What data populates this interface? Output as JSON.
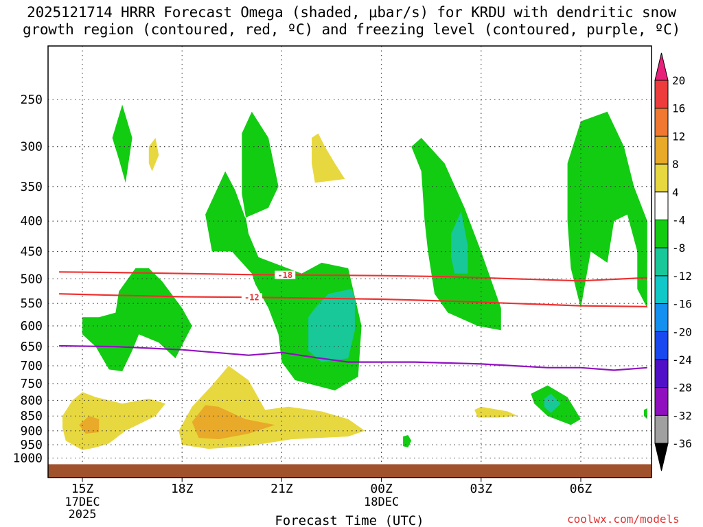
{
  "title_line1": "2025121714 HRRR Forecast Omega (shaded, μbar/s) for KRDU with dendritic snow",
  "title_line2": "growth region (contoured, red, ºC) and freezing level (contoured, purple, ºC)",
  "credit": "coolwx.com/models",
  "chart_data": {
    "type": "time-height cross section",
    "xlabel": "Forecast Time (UTC)",
    "x_ticks": [
      {
        "label": "15Z",
        "sub": [
          "17DEC",
          "2025"
        ],
        "hour": 0
      },
      {
        "label": "18Z",
        "sub": [],
        "hour": 3
      },
      {
        "label": "21Z",
        "sub": [],
        "hour": 6
      },
      {
        "label": "00Z",
        "sub": [
          "18DEC"
        ],
        "hour": 9
      },
      {
        "label": "03Z",
        "sub": [],
        "hour": 12
      },
      {
        "label": "06Z",
        "sub": [],
        "hour": 15
      }
    ],
    "x_range_hours": [
      -0.7,
      17.0
    ],
    "y_scale": "log-pressure",
    "y_range_hPa": [
      1025,
      200
    ],
    "y_ticks": [
      250,
      300,
      350,
      400,
      450,
      500,
      550,
      600,
      650,
      700,
      750,
      800,
      850,
      900,
      950,
      1000
    ],
    "grid": true,
    "ground_top_hPa": 1000,
    "colorbar": {
      "labels": [
        "20",
        "16",
        "12",
        "8",
        "4",
        "-4",
        "-8",
        "-12",
        "-16",
        "-20",
        "-24",
        "-28",
        "-32",
        "-36"
      ],
      "bins": [
        {
          "color": "#e8207a",
          "type": "triangle-top"
        },
        {
          "color": "#ee3c3c"
        },
        {
          "color": "#f07830"
        },
        {
          "color": "#e8aa28"
        },
        {
          "color": "#e8d840"
        },
        {
          "color": "#ffffff"
        },
        {
          "color": "#12cc12"
        },
        {
          "color": "#18c898"
        },
        {
          "color": "#10c8c8"
        },
        {
          "color": "#1490f0"
        },
        {
          "color": "#1848f0"
        },
        {
          "color": "#5010c8"
        },
        {
          "color": "#9010c0"
        },
        {
          "color": "#a0a0a0"
        },
        {
          "color": "#000000",
          "type": "triangle-bottom"
        }
      ]
    },
    "contour_lines": [
      {
        "label": "-18",
        "color": "#ee3030",
        "label_at_hour": 6.1,
        "points": [
          [
            -0.7,
            487
          ],
          [
            1,
            488
          ],
          [
            3,
            490
          ],
          [
            5,
            492
          ],
          [
            7,
            493
          ],
          [
            9,
            494
          ],
          [
            11,
            496
          ],
          [
            13,
            500
          ],
          [
            15,
            504
          ],
          [
            17,
            498
          ]
        ]
      },
      {
        "label": "-12",
        "color": "#ee3030",
        "label_at_hour": 5.1,
        "points": [
          [
            -0.7,
            530
          ],
          [
            1,
            533
          ],
          [
            3,
            536
          ],
          [
            5,
            537
          ],
          [
            7,
            539
          ],
          [
            9,
            541
          ],
          [
            11,
            545
          ],
          [
            13,
            550
          ],
          [
            15,
            555
          ],
          [
            17,
            557
          ]
        ]
      },
      {
        "label": "",
        "color": "#9010c0",
        "points": [
          [
            -0.7,
            648
          ],
          [
            1,
            650
          ],
          [
            3,
            658
          ],
          [
            5,
            672
          ],
          [
            6,
            665
          ],
          [
            7,
            678
          ],
          [
            8,
            690
          ],
          [
            10,
            690
          ],
          [
            12,
            695
          ],
          [
            14,
            705
          ],
          [
            15,
            705
          ],
          [
            16,
            712
          ],
          [
            17,
            705
          ]
        ]
      }
    ],
    "regions": [
      {
        "level": "-4",
        "points": [
          [
            0.9,
            290
          ],
          [
            1.2,
            255
          ],
          [
            1.5,
            290
          ],
          [
            1.3,
            345
          ],
          [
            1.1,
            315
          ]
        ]
      },
      {
        "level": "-4",
        "points": [
          [
            6.0,
            690
          ],
          [
            6.4,
            740
          ],
          [
            7.6,
            770
          ],
          [
            8.3,
            730
          ],
          [
            8.4,
            600
          ],
          [
            8.0,
            480
          ],
          [
            7.2,
            470
          ],
          [
            6.6,
            490
          ],
          [
            5.3,
            460
          ],
          [
            5.0,
            420
          ],
          [
            4.8,
            360
          ],
          [
            4.8,
            285
          ],
          [
            5.1,
            262
          ],
          [
            5.6,
            290
          ],
          [
            5.9,
            350
          ],
          [
            5.6,
            380
          ],
          [
            4.9,
            395
          ],
          [
            4.6,
            355
          ],
          [
            4.3,
            330
          ],
          [
            3.7,
            390
          ],
          [
            3.9,
            450
          ],
          [
            4.5,
            450
          ],
          [
            5.1,
            490
          ],
          [
            5.2,
            510
          ],
          [
            5.6,
            560
          ],
          [
            5.9,
            620
          ]
        ]
      },
      {
        "level": "-4",
        "points": [
          [
            0.0,
            580
          ],
          [
            0.0,
            620
          ],
          [
            0.4,
            650
          ],
          [
            0.8,
            710
          ],
          [
            1.2,
            715
          ],
          [
            1.5,
            660
          ],
          [
            1.7,
            620
          ],
          [
            2.3,
            640
          ],
          [
            2.8,
            680
          ],
          [
            3.3,
            600
          ],
          [
            3.0,
            560
          ],
          [
            2.4,
            505
          ],
          [
            2.0,
            480
          ],
          [
            1.6,
            480
          ],
          [
            1.1,
            525
          ],
          [
            1.0,
            570
          ],
          [
            0.5,
            580
          ]
        ]
      },
      {
        "level": "-4",
        "points": [
          [
            9.9,
            300
          ],
          [
            10.2,
            290
          ],
          [
            10.9,
            320
          ],
          [
            11.5,
            380
          ],
          [
            12.0,
            450
          ],
          [
            12.6,
            560
          ],
          [
            12.6,
            610
          ],
          [
            11.9,
            600
          ],
          [
            11.0,
            570
          ],
          [
            10.6,
            530
          ],
          [
            10.4,
            450
          ],
          [
            10.3,
            400
          ],
          [
            10.2,
            330
          ]
        ]
      },
      {
        "level": "-4",
        "points": [
          [
            14.6,
            320
          ],
          [
            15.0,
            272
          ],
          [
            15.8,
            262
          ],
          [
            16.3,
            300
          ],
          [
            16.6,
            350
          ],
          [
            17.0,
            400
          ],
          [
            17.0,
            470
          ],
          [
            16.7,
            450
          ],
          [
            16.4,
            390
          ],
          [
            16.0,
            400
          ],
          [
            15.8,
            470
          ],
          [
            15.3,
            450
          ],
          [
            15.0,
            560
          ],
          [
            14.7,
            480
          ],
          [
            14.6,
            400
          ]
        ]
      },
      {
        "level": "-4",
        "points": [
          [
            16.7,
            450
          ],
          [
            17.0,
            450
          ],
          [
            17.0,
            560
          ],
          [
            16.7,
            520
          ]
        ]
      },
      {
        "level": "-4",
        "points": [
          [
            13.5,
            780
          ],
          [
            14.0,
            755
          ],
          [
            14.6,
            790
          ],
          [
            15.0,
            860
          ],
          [
            14.7,
            880
          ],
          [
            14.0,
            850
          ],
          [
            13.6,
            810
          ]
        ]
      },
      {
        "level": "-4",
        "points": [
          [
            9.65,
            920
          ],
          [
            9.8,
            915
          ],
          [
            9.9,
            935
          ],
          [
            9.8,
            960
          ],
          [
            9.65,
            955
          ]
        ]
      },
      {
        "level": "-4",
        "points": [
          [
            16.9,
            830
          ],
          [
            17.0,
            825
          ],
          [
            17.0,
            860
          ],
          [
            16.9,
            850
          ]
        ]
      },
      {
        "level": "-8",
        "points": [
          [
            7.4,
            530
          ],
          [
            8.1,
            520
          ],
          [
            8.2,
            540
          ],
          [
            8.2,
            610
          ],
          [
            8.0,
            680
          ],
          [
            7.2,
            690
          ],
          [
            6.8,
            660
          ],
          [
            6.8,
            580
          ],
          [
            7.0,
            560
          ]
        ]
      },
      {
        "level": "-8",
        "points": [
          [
            11.1,
            420
          ],
          [
            11.4,
            385
          ],
          [
            11.6,
            440
          ],
          [
            11.6,
            490
          ],
          [
            11.2,
            490
          ],
          [
            11.1,
            460
          ]
        ]
      },
      {
        "level": "-8",
        "points": [
          [
            13.9,
            795
          ],
          [
            14.1,
            780
          ],
          [
            14.4,
            810
          ],
          [
            14.1,
            840
          ],
          [
            13.9,
            820
          ]
        ]
      },
      {
        "level": "4",
        "points": [
          [
            2.0,
            300
          ],
          [
            2.2,
            290
          ],
          [
            2.3,
            310
          ],
          [
            2.1,
            330
          ],
          [
            2.0,
            320
          ]
        ]
      },
      {
        "level": "4",
        "points": [
          [
            6.9,
            290
          ],
          [
            7.1,
            285
          ],
          [
            7.3,
            300
          ],
          [
            7.6,
            320
          ],
          [
            7.9,
            340
          ],
          [
            7.0,
            345
          ],
          [
            6.9,
            320
          ]
        ]
      },
      {
        "level": "4",
        "points": [
          [
            -0.6,
            850
          ],
          [
            -0.3,
            800
          ],
          [
            0.0,
            775
          ],
          [
            0.4,
            790
          ],
          [
            1.2,
            810
          ],
          [
            2.0,
            795
          ],
          [
            2.5,
            810
          ],
          [
            2.2,
            850
          ],
          [
            1.3,
            900
          ],
          [
            0.8,
            945
          ],
          [
            0.4,
            960
          ],
          [
            0.0,
            970
          ],
          [
            -0.5,
            935
          ],
          [
            -0.6,
            890
          ]
        ]
      },
      {
        "level": "4",
        "points": [
          [
            2.9,
            900
          ],
          [
            3.3,
            820
          ],
          [
            3.9,
            755
          ],
          [
            4.4,
            700
          ],
          [
            5.0,
            740
          ],
          [
            5.5,
            830
          ],
          [
            6.2,
            820
          ],
          [
            7.2,
            835
          ],
          [
            8.0,
            860
          ],
          [
            8.5,
            900
          ],
          [
            8.0,
            920
          ],
          [
            6.3,
            930
          ],
          [
            5.0,
            955
          ],
          [
            3.8,
            965
          ],
          [
            3.0,
            950
          ]
        ]
      },
      {
        "level": "4",
        "points": [
          [
            11.8,
            830
          ],
          [
            12.0,
            820
          ],
          [
            12.8,
            835
          ],
          [
            13.1,
            850
          ],
          [
            12.5,
            855
          ],
          [
            11.9,
            855
          ]
        ]
      },
      {
        "level": "8",
        "points": [
          [
            3.3,
            870
          ],
          [
            3.7,
            815
          ],
          [
            4.1,
            820
          ],
          [
            4.9,
            860
          ],
          [
            5.8,
            880
          ],
          [
            5.0,
            910
          ],
          [
            4.1,
            930
          ],
          [
            3.5,
            925
          ]
        ]
      },
      {
        "level": "8",
        "points": [
          [
            -0.1,
            880
          ],
          [
            0.2,
            850
          ],
          [
            0.5,
            860
          ],
          [
            0.5,
            905
          ],
          [
            0.1,
            910
          ]
        ]
      }
    ]
  }
}
